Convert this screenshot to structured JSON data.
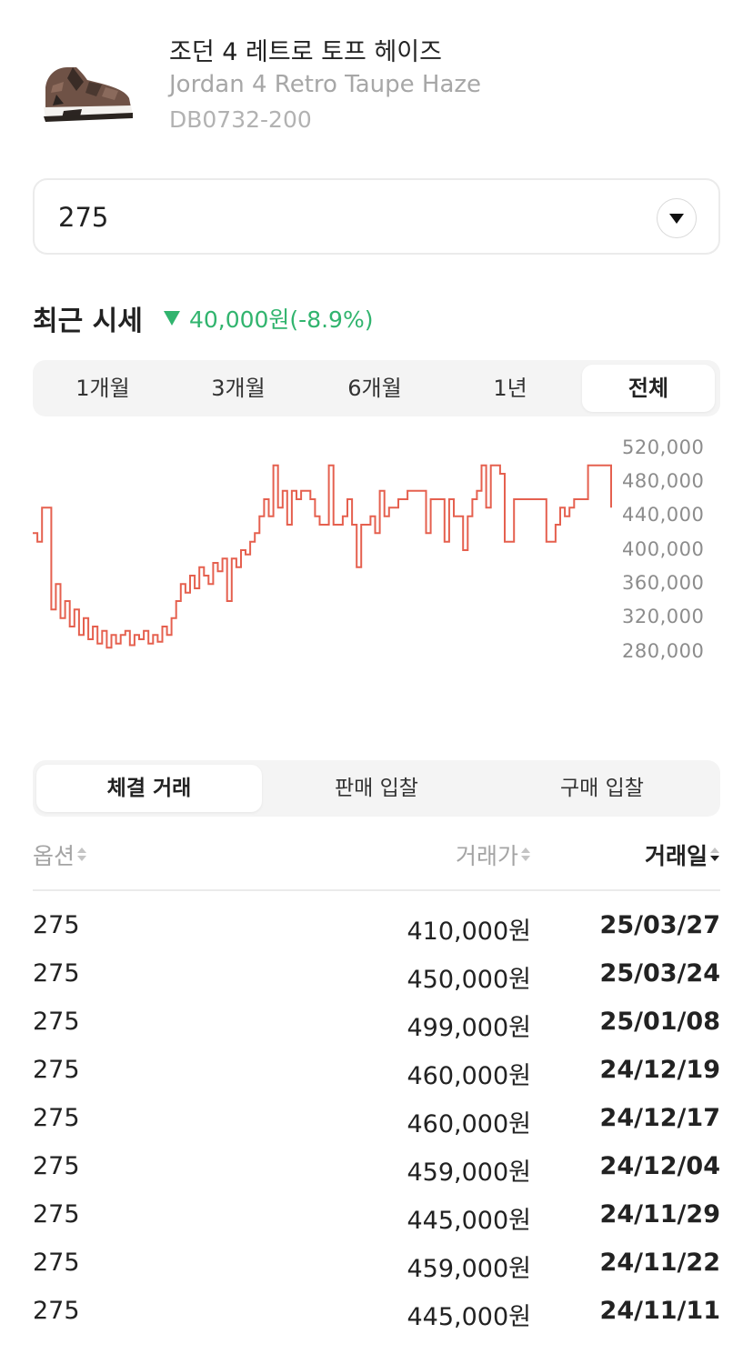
{
  "product": {
    "name_ko": "조던 4 레트로 토프 헤이즈",
    "name_en": "Jordan 4 Retro Taupe Haze",
    "model_code": "DB0732-200"
  },
  "size_select": {
    "value": "275"
  },
  "price_summary": {
    "title": "최근 시세",
    "change": "40,000원(-8.9%)",
    "direction": "down",
    "color": "#31b46e"
  },
  "period_tabs": {
    "items": [
      "1개월",
      "3개월",
      "6개월",
      "1년",
      "전체"
    ],
    "active": "전체"
  },
  "chart_data": {
    "type": "line",
    "color": "#e5604f",
    "y_ticks": [
      "520,000",
      "480,000",
      "440,000",
      "400,000",
      "360,000",
      "320,000",
      "280,000"
    ],
    "ylim": [
      280000,
      520000
    ],
    "grid": false,
    "series_values": [
      420000,
      410000,
      450000,
      450000,
      330000,
      360000,
      320000,
      340000,
      310000,
      330000,
      300000,
      320000,
      295000,
      310000,
      290000,
      305000,
      285000,
      300000,
      290000,
      300000,
      305000,
      288000,
      300000,
      295000,
      305000,
      290000,
      300000,
      292000,
      310000,
      300000,
      320000,
      340000,
      360000,
      350000,
      370000,
      355000,
      380000,
      370000,
      360000,
      385000,
      375000,
      390000,
      340000,
      390000,
      380000,
      400000,
      395000,
      410000,
      420000,
      440000,
      460000,
      440000,
      500000,
      450000,
      470000,
      430000,
      470000,
      460000,
      470000,
      470000,
      460000,
      440000,
      430000,
      430000,
      500000,
      430000,
      430000,
      440000,
      460000,
      430000,
      380000,
      430000,
      430000,
      440000,
      420000,
      470000,
      440000,
      450000,
      450000,
      460000,
      460000,
      470000,
      470000,
      470000,
      470000,
      420000,
      460000,
      460000,
      460000,
      410000,
      460000,
      440000,
      440000,
      400000,
      440000,
      460000,
      470000,
      500000,
      450000,
      500000,
      500000,
      490000,
      410000,
      410000,
      460000,
      460000,
      460000,
      460000,
      460000,
      460000,
      460000,
      410000,
      410000,
      430000,
      450000,
      440000,
      450000,
      460000,
      460000,
      460000,
      500000,
      500000,
      500000,
      500000,
      500000,
      450000
    ]
  },
  "trade_tabs": {
    "items": [
      "체결 거래",
      "판매 입찰",
      "구매 입찰"
    ],
    "active": "체결 거래"
  },
  "table": {
    "headers": {
      "option": "옵션",
      "price": "거래가",
      "date": "거래일"
    },
    "rows": [
      {
        "size": "275",
        "price": "410,000원",
        "date": "25/03/27"
      },
      {
        "size": "275",
        "price": "450,000원",
        "date": "25/03/24"
      },
      {
        "size": "275",
        "price": "499,000원",
        "date": "25/01/08"
      },
      {
        "size": "275",
        "price": "460,000원",
        "date": "24/12/19"
      },
      {
        "size": "275",
        "price": "460,000원",
        "date": "24/12/17"
      },
      {
        "size": "275",
        "price": "459,000원",
        "date": "24/12/04"
      },
      {
        "size": "275",
        "price": "445,000원",
        "date": "24/11/29"
      },
      {
        "size": "275",
        "price": "459,000원",
        "date": "24/11/22"
      },
      {
        "size": "275",
        "price": "445,000원",
        "date": "24/11/11"
      }
    ]
  }
}
